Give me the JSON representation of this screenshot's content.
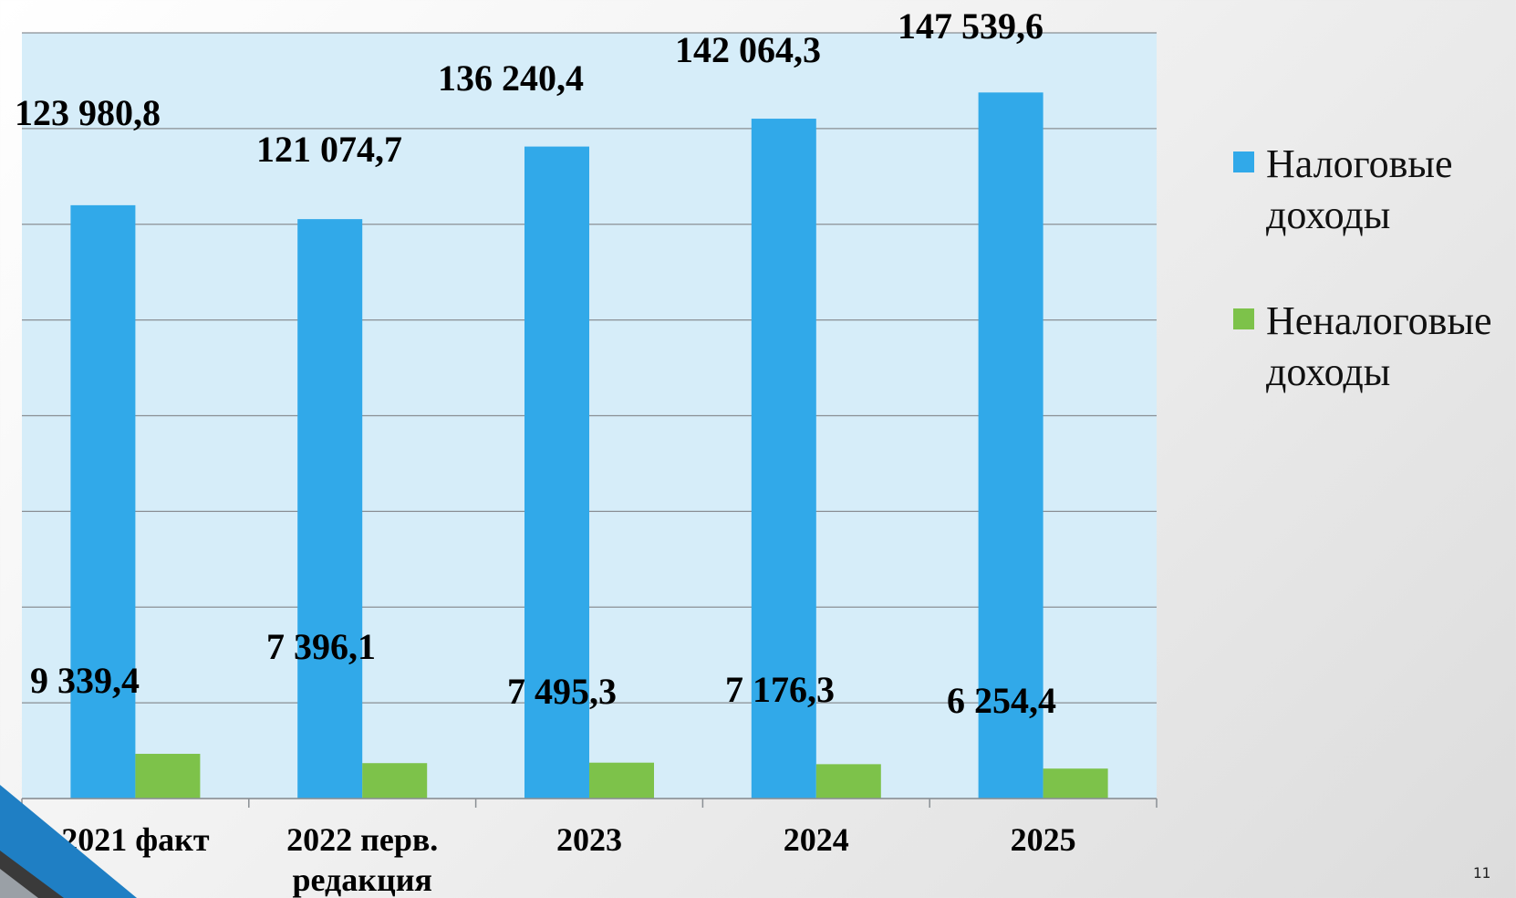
{
  "chart_data": {
    "type": "bar",
    "categories": [
      "2021 факт",
      "2022 перв. редакция",
      "2023",
      "2024",
      "2025"
    ],
    "series": [
      {
        "name": "Налоговые доходы",
        "color": "#31a9e9",
        "values": [
          123980.8,
          121074.7,
          136240.4,
          142064.3,
          147539.6
        ],
        "labels": [
          "123 980,8",
          "121 074,7",
          "136 240,4",
          "142 064,3",
          "147 539,6"
        ]
      },
      {
        "name": "Неналоговые доходы",
        "color": "#7dc24a",
        "values": [
          9339.4,
          7396.1,
          7495.3,
          7176.3,
          6254.4
        ],
        "labels": [
          "9 339,4",
          "7 396,1",
          "7 495,3",
          "7 176,3",
          "6 254,4"
        ]
      }
    ],
    "ylim": [
      0,
      160000
    ],
    "grid": true,
    "legend_position": "right",
    "plot_background": "#d6edf9"
  },
  "slide": {
    "page_number": "11"
  }
}
